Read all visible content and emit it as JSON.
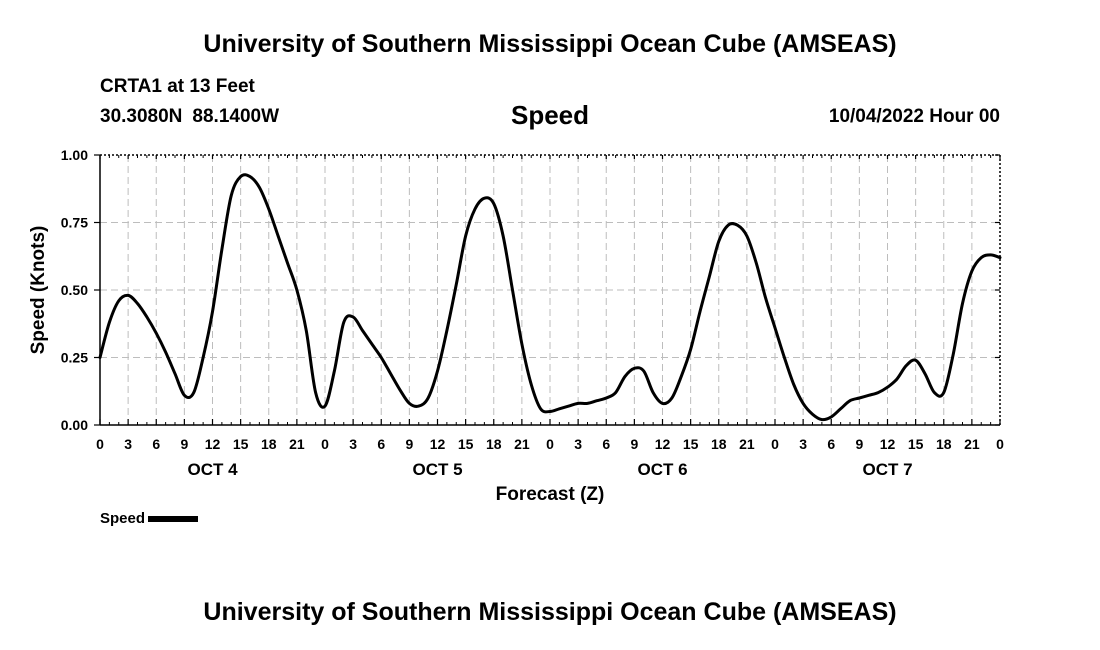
{
  "header": {
    "title": "University of Southern Mississippi Ocean Cube (AMSEAS)",
    "station": "CRTA1 at 13 Feet",
    "latitude": "30.3080N",
    "longitude": "88.1400W",
    "variable": "Speed",
    "datetime": "10/04/2022 Hour 00"
  },
  "footer": {
    "title": "University of Southern Mississippi Ocean Cube (AMSEAS)"
  },
  "legend": {
    "label": "Speed",
    "color": "#000000"
  },
  "chart_data": {
    "type": "line",
    "title": "Speed",
    "xlabel": "Forecast (Z)",
    "ylabel": "Speed (Knots)",
    "xlim": [
      0,
      96
    ],
    "ylim": [
      0,
      1.0
    ],
    "x_tick_step_hours": 3,
    "x_tick_labels": [
      "0",
      "3",
      "6",
      "9",
      "12",
      "15",
      "18",
      "21",
      "0",
      "3",
      "6",
      "9",
      "12",
      "15",
      "18",
      "21",
      "0",
      "3",
      "6",
      "9",
      "12",
      "15",
      "18",
      "21",
      "0",
      "3",
      "6",
      "9",
      "12",
      "15",
      "18",
      "21",
      "0"
    ],
    "y_ticks": [
      0,
      0.25,
      0.5,
      0.75,
      1.0
    ],
    "y_tick_labels": [
      "0.00",
      "0.25",
      "0.50",
      "0.75",
      "1.00"
    ],
    "day_labels": [
      {
        "label": "OCT 4",
        "hour": 12
      },
      {
        "label": "OCT 5",
        "hour": 36
      },
      {
        "label": "OCT 6",
        "hour": 60
      },
      {
        "label": "OCT 7",
        "hour": 84
      }
    ],
    "grid": true,
    "series": [
      {
        "name": "Speed",
        "color": "#000000",
        "x": [
          0,
          1,
          2,
          3,
          4,
          5,
          6,
          7,
          8,
          9,
          10,
          11,
          12,
          13,
          14,
          15,
          16,
          17,
          18,
          19,
          20,
          21,
          22,
          23,
          24,
          25,
          26,
          27,
          28,
          29,
          30,
          31,
          32,
          33,
          34,
          35,
          36,
          37,
          38,
          39,
          40,
          41,
          42,
          43,
          44,
          45,
          46,
          47,
          48,
          49,
          50,
          51,
          52,
          53,
          54,
          55,
          56,
          57,
          58,
          59,
          60,
          61,
          62,
          63,
          64,
          65,
          66,
          67,
          68,
          69,
          70,
          71,
          72,
          73,
          74,
          75,
          76,
          77,
          78,
          79,
          80,
          81,
          82,
          83,
          84,
          85,
          86,
          87,
          88,
          89,
          90,
          91,
          92,
          93,
          94,
          95,
          96
        ],
        "values": [
          0.25,
          0.38,
          0.46,
          0.48,
          0.45,
          0.4,
          0.34,
          0.27,
          0.19,
          0.11,
          0.12,
          0.25,
          0.42,
          0.65,
          0.85,
          0.92,
          0.92,
          0.88,
          0.8,
          0.7,
          0.6,
          0.5,
          0.35,
          0.12,
          0.07,
          0.2,
          0.38,
          0.4,
          0.35,
          0.3,
          0.25,
          0.19,
          0.13,
          0.08,
          0.07,
          0.1,
          0.2,
          0.35,
          0.52,
          0.7,
          0.8,
          0.84,
          0.82,
          0.7,
          0.5,
          0.3,
          0.15,
          0.06,
          0.05,
          0.06,
          0.07,
          0.08,
          0.08,
          0.09,
          0.1,
          0.12,
          0.18,
          0.21,
          0.2,
          0.12,
          0.08,
          0.1,
          0.18,
          0.28,
          0.42,
          0.55,
          0.68,
          0.74,
          0.74,
          0.7,
          0.6,
          0.47,
          0.36,
          0.25,
          0.15,
          0.08,
          0.04,
          0.02,
          0.03,
          0.06,
          0.09,
          0.1,
          0.11,
          0.12,
          0.14,
          0.17,
          0.22,
          0.24,
          0.19,
          0.12,
          0.12,
          0.26,
          0.45,
          0.57,
          0.62,
          0.63,
          0.62
        ]
      }
    ]
  }
}
